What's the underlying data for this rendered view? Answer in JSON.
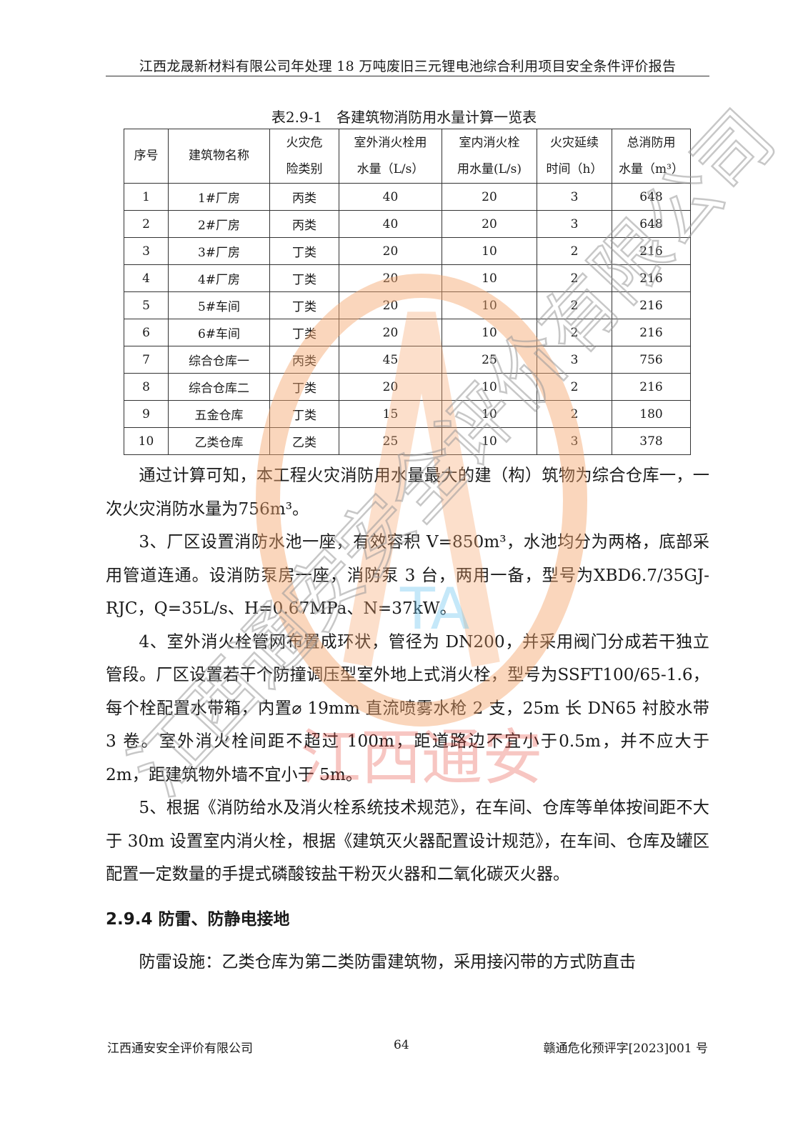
{
  "header": {
    "title": "江西龙晟新材料有限公司年处理 18 万吨废旧三元锂电池综合利用项目安全条件评价报告"
  },
  "table": {
    "caption": "表2.9-1　各建筑物消防用水量计算一览表",
    "columns": [
      [
        "序号"
      ],
      [
        "建筑物名称"
      ],
      [
        "火灾危",
        "险类别"
      ],
      [
        "室外消火栓用",
        "水量（L/s）"
      ],
      [
        "室内消火栓",
        "用水量(L/s)"
      ],
      [
        "火灾延续",
        "时间（h）"
      ],
      [
        "总消防用",
        "水量（m³）"
      ]
    ],
    "rows": [
      [
        "1",
        "1#厂房",
        "丙类",
        "40",
        "20",
        "3",
        "648"
      ],
      [
        "2",
        "2#厂房",
        "丙类",
        "40",
        "20",
        "3",
        "648"
      ],
      [
        "3",
        "3#厂房",
        "丁类",
        "20",
        "10",
        "2",
        "216"
      ],
      [
        "4",
        "4#厂房",
        "丁类",
        "20",
        "10",
        "2",
        "216"
      ],
      [
        "5",
        "5#车间",
        "丁类",
        "20",
        "10",
        "2",
        "216"
      ],
      [
        "6",
        "6#车间",
        "丁类",
        "20",
        "10",
        "2",
        "216"
      ],
      [
        "7",
        "综合仓库一",
        "丙类",
        "45",
        "25",
        "3",
        "756"
      ],
      [
        "8",
        "综合仓库二",
        "丁类",
        "20",
        "10",
        "2",
        "216"
      ],
      [
        "9",
        "五金仓库",
        "丁类",
        "15",
        "10",
        "2",
        "180"
      ],
      [
        "10",
        "乙类仓库",
        "乙类",
        "25",
        "10",
        "3",
        "378"
      ]
    ]
  },
  "body": {
    "p1": "通过计算可知，本工程火灾消防用水量最大的建（构）筑物为综合仓库一，一次火灾消防水量为756m³。",
    "p2": "3、厂区设置消防水池一座，有效容积 V=850m³，水池均分为两格，底部采用管道连通。设消防泵房一座，消防泵 3 台，两用一备，型号为XBD6.7/35GJ-RJC，Q=35L/s、H=0.67MPa、N=37kW。",
    "p3": "4、室外消火栓管网布置成环状，管径为 DN200，并采用阀门分成若干独立管段。厂区设置若干个防撞调压型室外地上式消火栓，型号为SSFT100/65-1.6，每个栓配置水带箱，内置⌀ 19mm 直流喷雾水枪 2 支，25m 长 DN65 衬胶水带 3 卷。室外消火栓间距不超过 100m，距道路边不宜小于0.5m，并不应大于 2m，距建筑物外墙不宜小于 5m。",
    "p4": "5、根据《消防给水及消火栓系统技术规范》，在车间、仓库等单体按间距不大于 30m 设置室内消火栓，根据《建筑灭火器配置设计规范》，在车间、仓库及罐区配置一定数量的手提式磷酸铵盐干粉灭火器和二氧化碳灭火器。",
    "heading": "2.9.4 防雷、防静电接地",
    "p5": "防雷设施：乙类仓库为第二类防雷建筑物，采用接闪带的方式防直击"
  },
  "footer": {
    "company": "江西通安安全评价有限公司",
    "page": "64",
    "doc_no": "赣通危化预评字[2023]001 号"
  },
  "watermark": {
    "diagonal_text": "江西通安安全评价有限公司",
    "red_text": "江西通安",
    "logo_letters": "TA",
    "colors": {
      "ring": "#f5a36a",
      "gray": "#9a9a9a",
      "red": "#e8443a",
      "blue": "#5cc0ee"
    }
  }
}
